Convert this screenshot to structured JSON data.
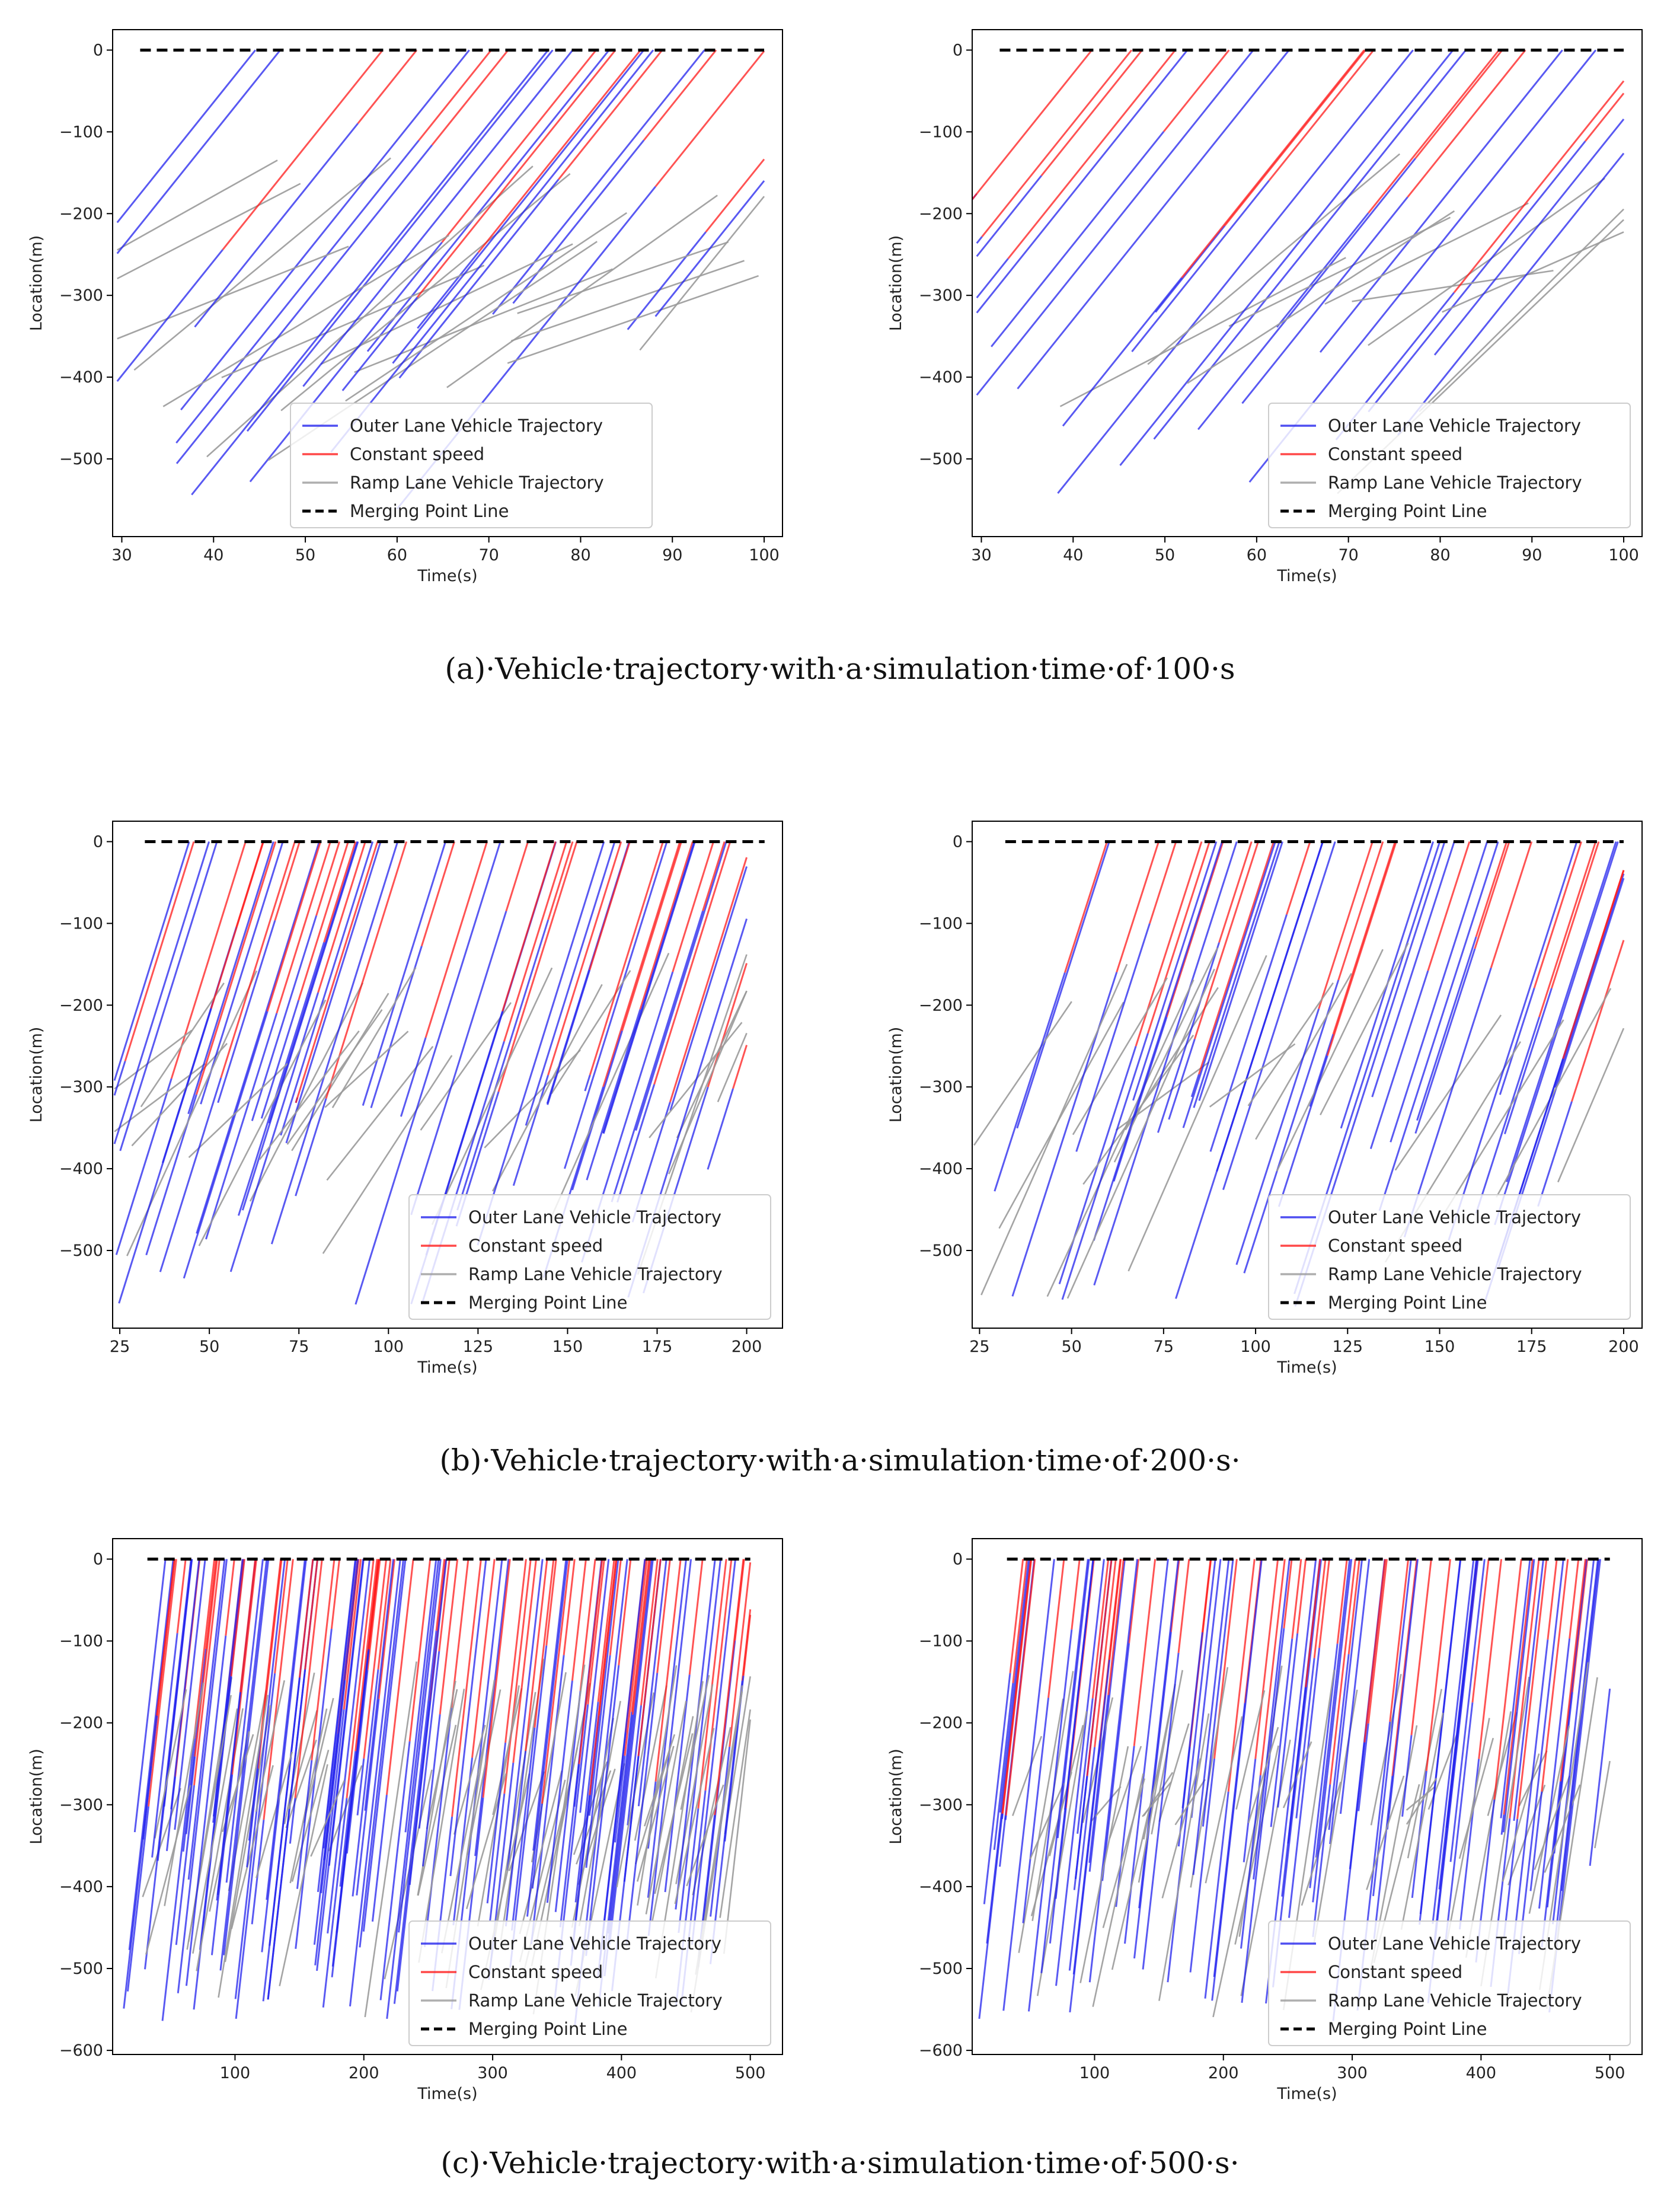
{
  "legend_labels": [
    "Outer Lane Vehicle Trajectory",
    "Constant speed",
    "Ramp Lane Vehicle Trajectory",
    "Merging Point Line"
  ],
  "colors": {
    "outer": "#2222ee",
    "constant": "#ff1a1a",
    "ramp": "#9a9a9a",
    "merge": "#000000"
  },
  "captions": [
    "(a)·Vehicle·trajectory·with·a·simulation·time·of·100·s",
    "(b)·Vehicle·trajectory·with·a·simulation·time·of·200·s·",
    "(c)·Vehicle·trajectory·with·a·simulation·time·of·500·s·"
  ],
  "chart_data": [
    {
      "type": "line",
      "panel": "a-left",
      "xlabel": "Time(s)",
      "ylabel": "Location(m)",
      "xlim": [
        29,
        102
      ],
      "ylim": [
        -595,
        25
      ],
      "xticks": [
        30,
        40,
        50,
        60,
        70,
        80,
        90,
        100
      ],
      "yticks": [
        0,
        -100,
        -200,
        -300,
        -400,
        -500
      ],
      "sim_time": 100,
      "merge_x_range": [
        32,
        100
      ],
      "seed": 11,
      "density": 1.0,
      "constant_ratio": 0.55,
      "legend": "lower-center"
    },
    {
      "type": "line",
      "panel": "a-right",
      "xlabel": "Time(s)",
      "ylabel": "Location(m)",
      "xlim": [
        29,
        102
      ],
      "ylim": [
        -595,
        25
      ],
      "xticks": [
        30,
        40,
        50,
        60,
        70,
        80,
        90,
        100
      ],
      "yticks": [
        0,
        -100,
        -200,
        -300,
        -400,
        -500
      ],
      "sim_time": 100,
      "merge_x_range": [
        32,
        100
      ],
      "seed": 23,
      "density": 0.8,
      "constant_ratio": 0.5,
      "legend": "lower-right"
    },
    {
      "type": "line",
      "panel": "b-left",
      "xlabel": "Time(s)",
      "ylabel": "Location(m)",
      "xlim": [
        23,
        210
      ],
      "ylim": [
        -595,
        25
      ],
      "xticks": [
        25,
        50,
        75,
        100,
        125,
        150,
        175,
        200
      ],
      "yticks": [
        0,
        -100,
        -200,
        -300,
        -400,
        -500
      ],
      "sim_time": 200,
      "merge_x_range": [
        32,
        205
      ],
      "seed": 37,
      "density": 1.0,
      "constant_ratio": 0.6,
      "legend": "lower-right"
    },
    {
      "type": "line",
      "panel": "b-right",
      "xlabel": "Time(s)",
      "ylabel": "Location(m)",
      "xlim": [
        23,
        205
      ],
      "ylim": [
        -595,
        25
      ],
      "xticks": [
        25,
        50,
        75,
        100,
        125,
        150,
        175,
        200
      ],
      "yticks": [
        0,
        -100,
        -200,
        -300,
        -400,
        -500
      ],
      "sim_time": 200,
      "merge_x_range": [
        32,
        200
      ],
      "seed": 41,
      "density": 0.8,
      "constant_ratio": 0.5,
      "legend": "lower-right"
    },
    {
      "type": "line",
      "panel": "c-left",
      "xlabel": "Time(s)",
      "ylabel": "Location(m)",
      "xlim": [
        5,
        525
      ],
      "ylim": [
        -605,
        25
      ],
      "xticks": [
        100,
        200,
        300,
        400,
        500
      ],
      "yticks": [
        0,
        -100,
        -200,
        -300,
        -400,
        -500,
        -600
      ],
      "sim_time": 500,
      "merge_x_range": [
        32,
        500
      ],
      "seed": 53,
      "density": 1.0,
      "constant_ratio": 0.6,
      "legend": "lower-right"
    },
    {
      "type": "line",
      "panel": "c-right",
      "xlabel": "Time(s)",
      "ylabel": "Location(m)",
      "xlim": [
        5,
        525
      ],
      "ylim": [
        -605,
        25
      ],
      "xticks": [
        100,
        200,
        300,
        400,
        500
      ],
      "yticks": [
        0,
        -100,
        -200,
        -300,
        -400,
        -500,
        -600
      ],
      "sim_time": 500,
      "merge_x_range": [
        32,
        500
      ],
      "seed": 67,
      "density": 0.75,
      "constant_ratio": 0.5,
      "legend": "lower-right"
    }
  ]
}
